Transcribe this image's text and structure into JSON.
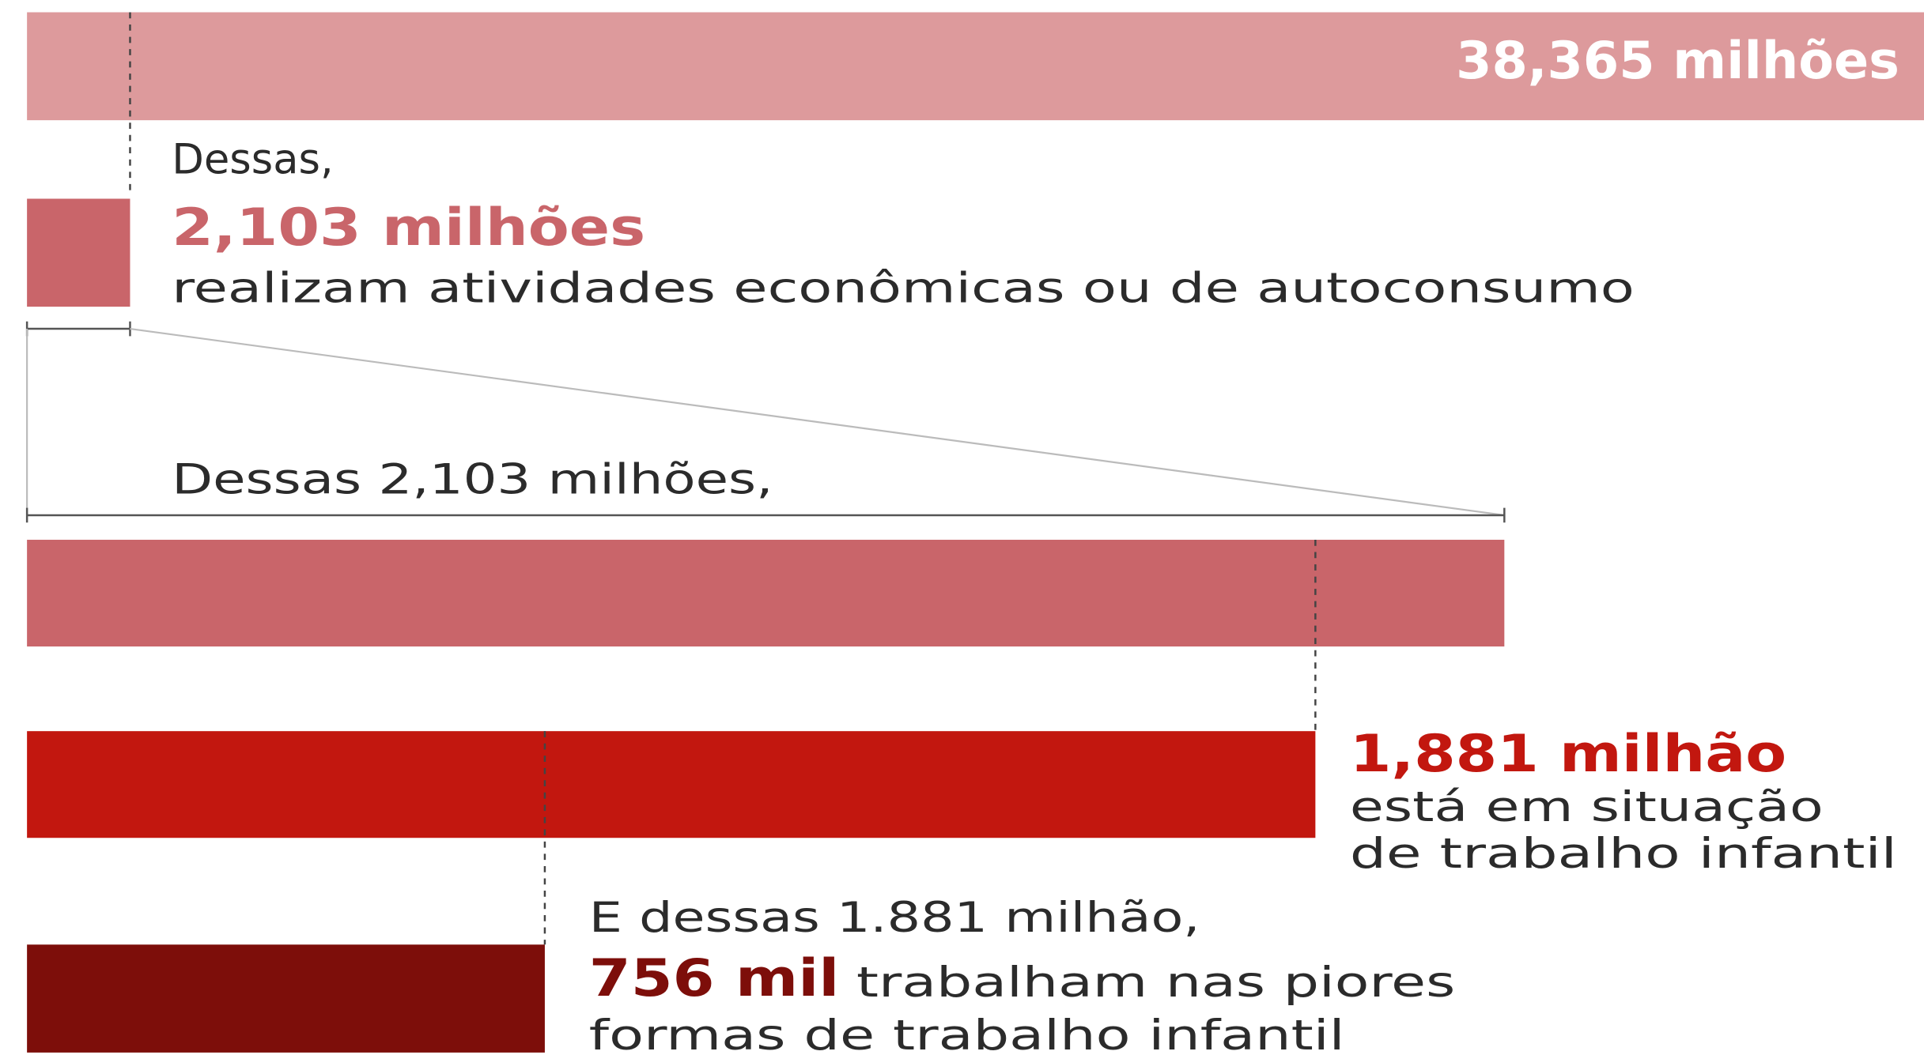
{
  "total": {
    "value": "38,365 milhões"
  },
  "step1": {
    "intro": "Dessas,",
    "value": "2,103 milhões",
    "text": "realizam atividades econômicas ou de autoconsumo"
  },
  "step2": {
    "intro": "Dessas 2,103 milhões,"
  },
  "step3": {
    "value": "1,881 milhão",
    "lines": [
      "está em situação",
      "de trabalho infantil"
    ]
  },
  "step4": {
    "intro": "E dessas 1.881 milhão,",
    "value": "756 mil",
    "text": "trabalham nas piores",
    "text2": "formas de trabalho infantil"
  }
}
